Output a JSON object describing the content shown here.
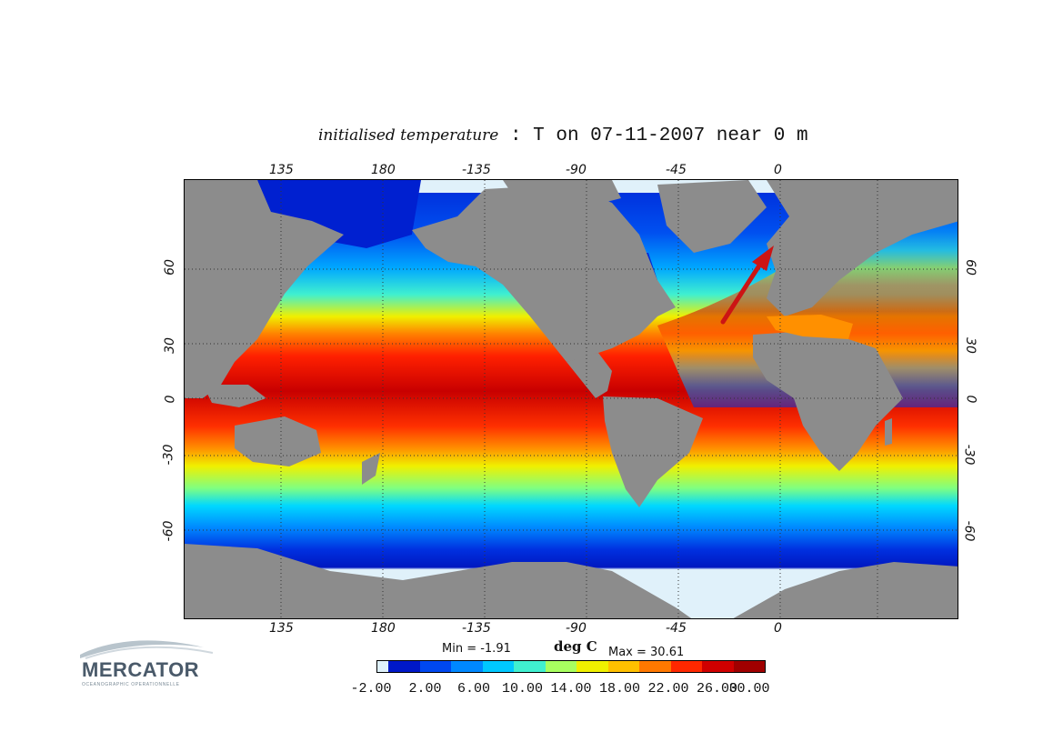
{
  "title": {
    "prefix": "initialised temperature",
    "rest": " : T on 07-11-2007 near 0 m"
  },
  "axes": {
    "lon_top": [
      "135",
      "180",
      "-135",
      "-90",
      "-45",
      "0"
    ],
    "lon_bottom": [
      "135",
      "180",
      "-135",
      "-90",
      "-45",
      "0"
    ],
    "lat_left": [
      "60",
      "30",
      "0",
      "-30",
      "-60"
    ],
    "lat_right": [
      "60",
      "30",
      "0",
      "-30",
      "-60"
    ]
  },
  "colorbar": {
    "min_text": "Min = -1.91",
    "units": "deg C",
    "max_text": "Max = 30.61",
    "labels": [
      "-2.00",
      "2.00",
      "6.00",
      "10.00",
      "14.00",
      "18.00",
      "22.00",
      "26.00",
      "30.00"
    ],
    "range": [
      -2,
      30
    ],
    "colors": [
      "#dff1fb",
      "#0018c8",
      "#0048f0",
      "#0088ff",
      "#00c8ff",
      "#40f0d0",
      "#a8ff60",
      "#f0f000",
      "#ffc000",
      "#ff7800",
      "#ff2800",
      "#d00000",
      "#a00000"
    ]
  },
  "logo": {
    "name": "MERCATOR",
    "tagline": "OCEANOGRAPHIC OPERATIONNELLE"
  },
  "colors": {
    "land": "#8c8c8c",
    "sea_ice": "#e0f1fa",
    "arrow": "#cc1414"
  }
}
